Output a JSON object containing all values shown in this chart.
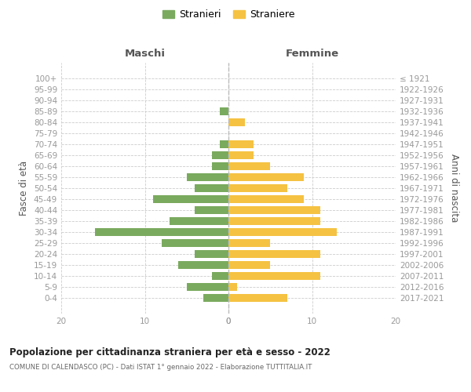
{
  "age_groups": [
    "100+",
    "95-99",
    "90-94",
    "85-89",
    "80-84",
    "75-79",
    "70-74",
    "65-69",
    "60-64",
    "55-59",
    "50-54",
    "45-49",
    "40-44",
    "35-39",
    "30-34",
    "25-29",
    "20-24",
    "15-19",
    "10-14",
    "5-9",
    "0-4"
  ],
  "birth_years": [
    "≤ 1921",
    "1922-1926",
    "1927-1931",
    "1932-1936",
    "1937-1941",
    "1942-1946",
    "1947-1951",
    "1952-1956",
    "1957-1961",
    "1962-1966",
    "1967-1971",
    "1972-1976",
    "1977-1981",
    "1982-1986",
    "1987-1991",
    "1992-1996",
    "1997-2001",
    "2002-2006",
    "2007-2011",
    "2012-2016",
    "2017-2021"
  ],
  "maschi": [
    0,
    0,
    0,
    1,
    0,
    0,
    1,
    2,
    2,
    5,
    4,
    9,
    4,
    7,
    16,
    8,
    4,
    6,
    2,
    5,
    3
  ],
  "femmine": [
    0,
    0,
    0,
    0,
    2,
    0,
    3,
    3,
    5,
    9,
    7,
    9,
    11,
    11,
    13,
    5,
    11,
    5,
    11,
    1,
    7
  ],
  "color_maschi": "#7aaa5e",
  "color_femmine": "#f5c242",
  "xlim": 20,
  "title": "Popolazione per cittadinanza straniera per età e sesso - 2022",
  "subtitle": "COMUNE DI CALENDASCO (PC) - Dati ISTAT 1° gennaio 2022 - Elaborazione TUTTITALIA.IT",
  "ylabel_left": "Fasce di età",
  "ylabel_right": "Anni di nascita",
  "header_maschi": "Maschi",
  "header_femmine": "Femmine",
  "legend_stranieri": "Stranieri",
  "legend_straniere": "Straniere",
  "bg_color": "#ffffff",
  "grid_color": "#cccccc",
  "tick_color": "#999999",
  "label_color": "#555555"
}
